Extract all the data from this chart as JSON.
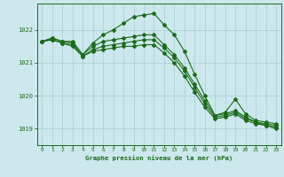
{
  "title": "Graphe pression niveau de la mer (hPa)",
  "bg_color": "#cce8ec",
  "grid_color": "#a8cdd4",
  "line_color": "#1a6b1a",
  "xlim": [
    -0.5,
    23.5
  ],
  "ylim": [
    1018.5,
    1022.8
  ],
  "yticks": [
    1019,
    1020,
    1021,
    1022
  ],
  "xticks": [
    0,
    1,
    2,
    3,
    4,
    5,
    6,
    7,
    8,
    9,
    10,
    11,
    12,
    13,
    14,
    15,
    16,
    17,
    18,
    19,
    20,
    21,
    22,
    23
  ],
  "line1_x": [
    0,
    1,
    2,
    3,
    4,
    5,
    6,
    7,
    8,
    9,
    10,
    11,
    12,
    13,
    14,
    15,
    16,
    17,
    18,
    19,
    20,
    21,
    22,
    23
  ],
  "line1_y": [
    1021.65,
    1021.75,
    1021.65,
    1021.65,
    1021.25,
    1021.6,
    1021.85,
    1022.0,
    1022.2,
    1022.4,
    1022.45,
    1022.5,
    1022.15,
    1021.85,
    1021.35,
    1020.65,
    1020.0,
    1019.4,
    1019.5,
    1019.9,
    1019.45,
    1019.25,
    1019.2,
    1019.15
  ],
  "line2_x": [
    0,
    1,
    2,
    3,
    4,
    5,
    6,
    7,
    8,
    9,
    10,
    11,
    12,
    13,
    14,
    15,
    16,
    17,
    18,
    19,
    20,
    21,
    22,
    23
  ],
  "line2_y": [
    1021.65,
    1021.75,
    1021.65,
    1021.6,
    1021.25,
    1021.5,
    1021.65,
    1021.7,
    1021.75,
    1021.8,
    1021.85,
    1021.85,
    1021.55,
    1021.25,
    1020.85,
    1020.35,
    1019.85,
    1019.4,
    1019.45,
    1019.55,
    1019.35,
    1019.2,
    1019.15,
    1019.1
  ],
  "line3_x": [
    0,
    1,
    2,
    3,
    4,
    5,
    6,
    7,
    8,
    9,
    10,
    11,
    12,
    13,
    14,
    15,
    16,
    17,
    18,
    19,
    20,
    21,
    22,
    23
  ],
  "line3_y": [
    1021.65,
    1021.7,
    1021.6,
    1021.55,
    1021.2,
    1021.4,
    1021.5,
    1021.55,
    1021.6,
    1021.65,
    1021.7,
    1021.7,
    1021.45,
    1021.15,
    1020.75,
    1020.25,
    1019.75,
    1019.35,
    1019.4,
    1019.5,
    1019.3,
    1019.2,
    1019.1,
    1019.05
  ],
  "line4_x": [
    0,
    1,
    2,
    3,
    4,
    5,
    6,
    7,
    8,
    9,
    10,
    11,
    12,
    13,
    14,
    15,
    16,
    17,
    18,
    19,
    20,
    21,
    22,
    23
  ],
  "line4_y": [
    1021.65,
    1021.7,
    1021.6,
    1021.5,
    1021.2,
    1021.35,
    1021.4,
    1021.45,
    1021.5,
    1021.5,
    1021.55,
    1021.55,
    1021.3,
    1021.0,
    1020.6,
    1020.1,
    1019.65,
    1019.3,
    1019.35,
    1019.45,
    1019.25,
    1019.15,
    1019.1,
    1019.0
  ]
}
